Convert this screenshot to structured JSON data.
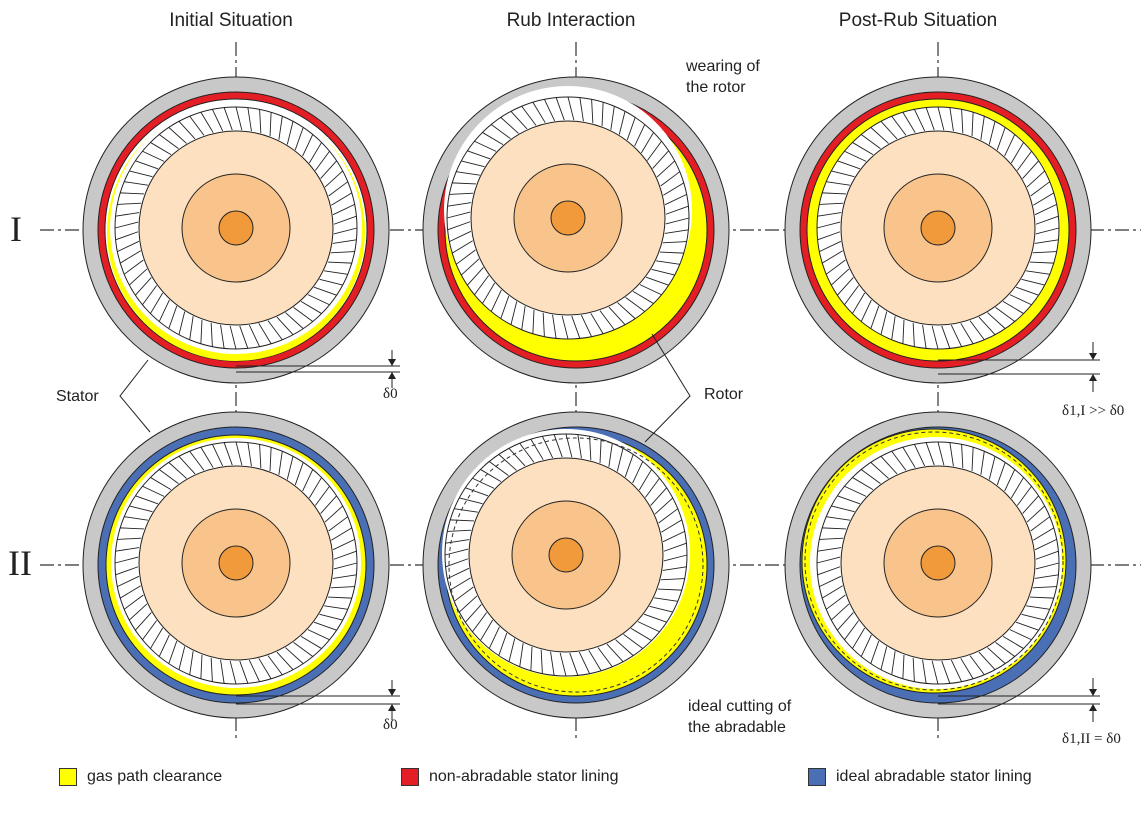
{
  "headers": {
    "initial": "Initial Situation",
    "rub": "Rub Interaction",
    "post": "Post-Rub Situation"
  },
  "rows": {
    "one": "I",
    "two": "II"
  },
  "annotations": {
    "wearing_line1": "wearing of",
    "wearing_line2": "the rotor",
    "stator": "Stator",
    "rotor": "Rotor",
    "cutting_line1": "ideal cutting of",
    "cutting_line2": "the abradable"
  },
  "deltas": {
    "d0": "δ0",
    "d1_one": "δ1,I >> δ0",
    "d1_two": "δ1,II = δ0"
  },
  "legend": [
    {
      "label": "gas path clearance",
      "color": "#ffff00"
    },
    {
      "label": "non-abradable stator lining",
      "color": "#e31e24"
    },
    {
      "label": "ideal abradable stator lining",
      "color": "#4a6fb5"
    }
  ],
  "colors": {
    "stator": "#c8c8c8",
    "disk_outer": "#fde0c0",
    "disk_middle": "#f8c48c",
    "hub": "#f09a3c",
    "blade_ring": "#ffffff"
  }
}
